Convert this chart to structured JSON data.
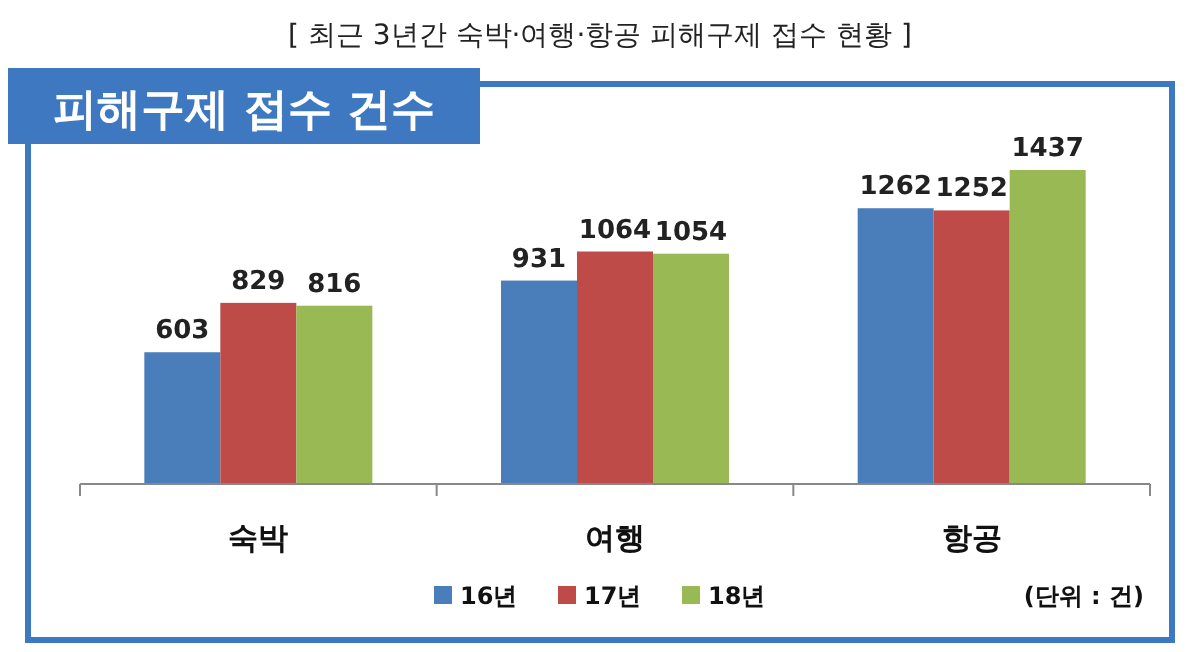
{
  "chart_data": {
    "type": "bar",
    "title": "[ 최근 3년간 숙박·여행·항공 피해구제 접수 현황 ]",
    "subtitle": "피해구제 접수 건수",
    "categories": [
      "숙박",
      "여행",
      "항공"
    ],
    "series": [
      {
        "name": "16년",
        "color": "#4a7ebb",
        "values": [
          603,
          931,
          1262
        ]
      },
      {
        "name": "17년",
        "color": "#be4b48",
        "values": [
          829,
          1064,
          1252
        ]
      },
      {
        "name": "18년",
        "color": "#98b954",
        "values": [
          816,
          1054,
          1437
        ]
      }
    ],
    "data_labels": true,
    "legend": "bottom",
    "annotations": [
      "(단위 : 건)"
    ]
  }
}
